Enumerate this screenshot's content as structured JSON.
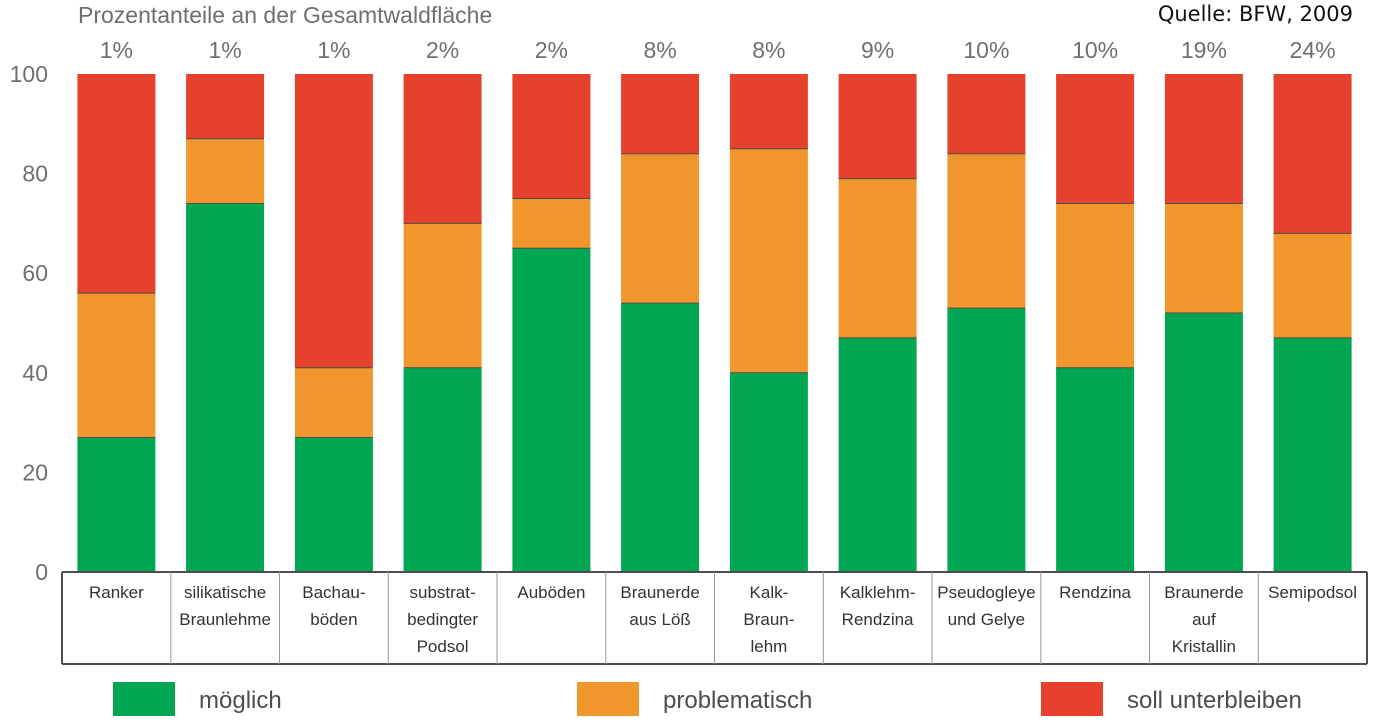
{
  "header": {
    "title": "Prozentanteile an der Gesamtwaldfläche",
    "source": "Quelle: BFW, 2009"
  },
  "colors": {
    "moeglich": "#00a651",
    "problematisch": "#f0962d",
    "soll_unterbleiben": "#e5412d",
    "axis_text": "#6d6f71",
    "gridline": "#4d4d4d"
  },
  "chart_data": {
    "type": "bar",
    "stacked": true,
    "ylim": [
      0,
      100
    ],
    "yticks": [
      0,
      20,
      40,
      60,
      80,
      100
    ],
    "grid": false,
    "legend_position": "bottom",
    "top_labels": [
      "1%",
      "1%",
      "1%",
      "2%",
      "2%",
      "8%",
      "8%",
      "9%",
      "10%",
      "10%",
      "19%",
      "24%"
    ],
    "categories": [
      [
        "Ranker"
      ],
      [
        "silikatische",
        "Braunlehme"
      ],
      [
        "Bachau-",
        "böden"
      ],
      [
        "substrat-",
        "bedingter",
        "Podsol"
      ],
      [
        "Auböden"
      ],
      [
        "Braunerde",
        "aus Löß"
      ],
      [
        "Kalk-",
        "Braun-",
        "lehm"
      ],
      [
        "Kalklehm-",
        "Rendzina"
      ],
      [
        "Pseudogleye",
        "und Gelye"
      ],
      [
        "Rendzina"
      ],
      [
        "Braunerde",
        "auf",
        "Kristallin"
      ],
      [
        "Semipodsol"
      ]
    ],
    "series": [
      {
        "name": "möglich",
        "color": "#00a651",
        "values": [
          27,
          74,
          27,
          41,
          65,
          54,
          40,
          47,
          53,
          41,
          52,
          47
        ]
      },
      {
        "name": "problematisch",
        "color": "#f0962d",
        "values": [
          29,
          13,
          14,
          29,
          10,
          30,
          45,
          32,
          31,
          33,
          22,
          21
        ]
      },
      {
        "name": "soll unterbleiben",
        "color": "#e5412d",
        "values": [
          44,
          13,
          59,
          30,
          25,
          16,
          15,
          21,
          16,
          26,
          26,
          32
        ]
      }
    ]
  }
}
